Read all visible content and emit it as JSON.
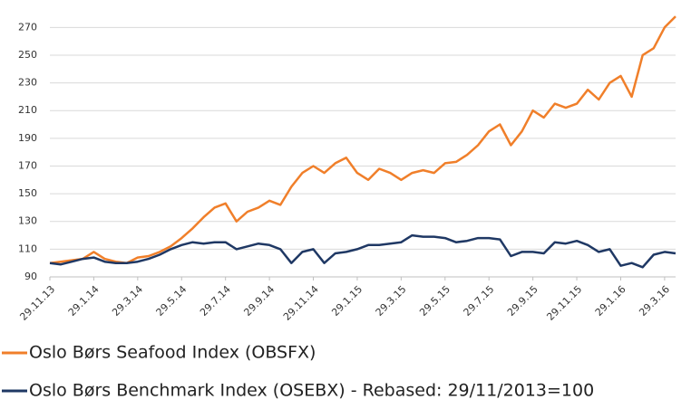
{
  "chart_data": {
    "type": "line",
    "categories": [
      "29.11.13",
      null,
      null,
      null,
      "29.1.14",
      null,
      null,
      null,
      "29.3.14",
      null,
      null,
      null,
      "29.5.14",
      null,
      null,
      null,
      "29.7.14",
      null,
      null,
      null,
      "29.9.14",
      null,
      null,
      null,
      "29.11.14",
      null,
      null,
      null,
      "29.1.15",
      null,
      null,
      null,
      "29.3.15",
      null,
      null,
      null,
      "29.5.15",
      null,
      null,
      null,
      "29.7.15",
      null,
      null,
      null,
      "29.9.15",
      null,
      null,
      null,
      "29.11.15",
      null,
      null,
      null,
      "29.1.16",
      null,
      null,
      null,
      "29.3.16",
      null
    ],
    "series": [
      {
        "name": "Oslo Børs Seafood Index (OBSFX)",
        "color": "#f07f2a",
        "values": [
          100,
          101,
          102,
          103,
          108,
          103,
          101,
          100,
          104,
          105,
          108,
          112,
          118,
          125,
          133,
          140,
          143,
          130,
          137,
          140,
          145,
          142,
          155,
          165,
          170,
          165,
          172,
          176,
          165,
          160,
          168,
          165,
          160,
          165,
          167,
          165,
          172,
          173,
          178,
          185,
          195,
          200,
          185,
          195,
          210,
          205,
          215,
          212,
          215,
          225,
          218,
          230,
          235,
          220,
          250,
          255,
          270,
          278
        ]
      },
      {
        "name": "Oslo Børs Benchmark Index (OSEBX) - Rebased: 29/11/2013=100",
        "color": "#1f3864",
        "values": [
          100,
          99,
          101,
          103,
          104,
          101,
          100,
          100,
          101,
          103,
          106,
          110,
          113,
          115,
          114,
          115,
          115,
          110,
          112,
          114,
          113,
          110,
          100,
          108,
          110,
          100,
          107,
          108,
          110,
          113,
          113,
          114,
          115,
          120,
          119,
          119,
          118,
          115,
          116,
          118,
          118,
          117,
          105,
          108,
          108,
          107,
          115,
          114,
          116,
          113,
          108,
          110,
          98,
          100,
          97,
          106,
          108,
          107
        ]
      }
    ],
    "ylim": [
      90,
      280
    ],
    "yticks": [
      90,
      110,
      130,
      150,
      170,
      190,
      210,
      230,
      250,
      270
    ],
    "grid": true
  }
}
